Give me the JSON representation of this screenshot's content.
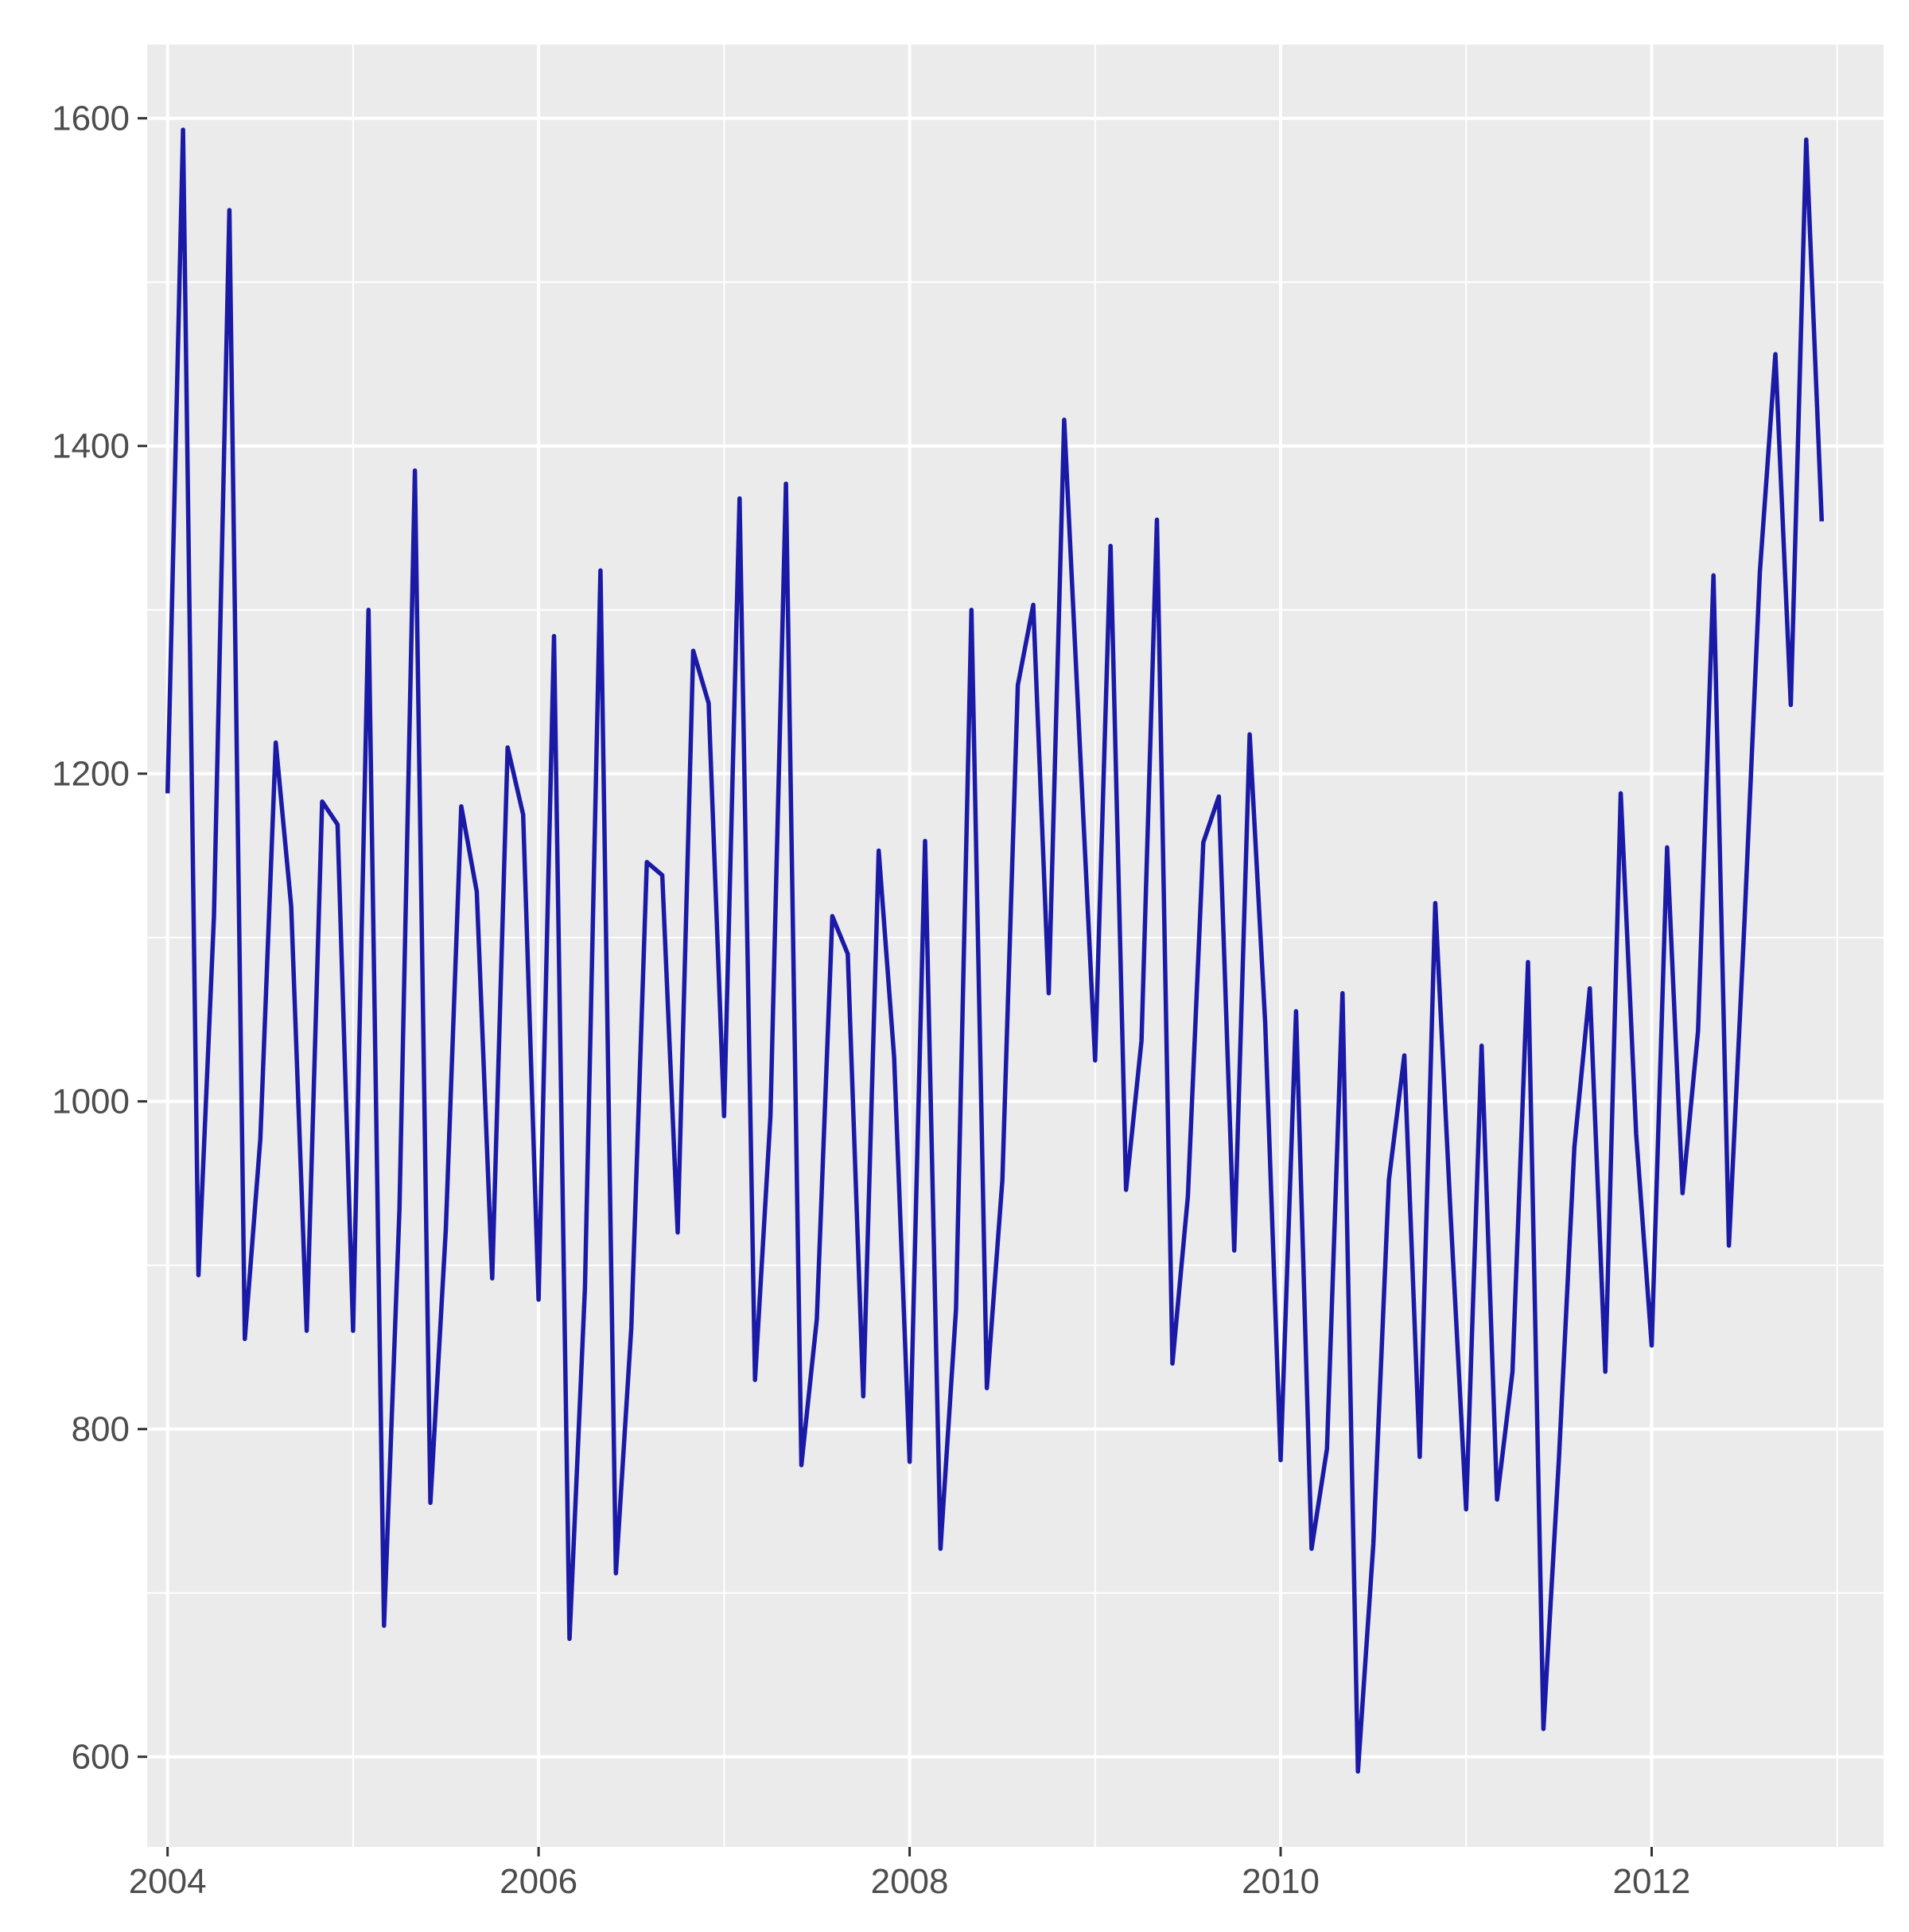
{
  "chart_data": {
    "type": "line",
    "title": "",
    "xlabel": "",
    "ylabel": "",
    "xlim": [
      2003.89,
      2013.25
    ],
    "ylim": [
      545,
      1645
    ],
    "x_ticks": [
      2004,
      2006,
      2008,
      2010,
      2012
    ],
    "x_tick_labels": [
      "2004",
      "2006",
      "2008",
      "2010",
      "2012"
    ],
    "y_ticks": [
      600,
      800,
      1000,
      1200,
      1400,
      1600
    ],
    "y_tick_labels": [
      "600",
      "800",
      "1000",
      "1200",
      "1400",
      "1600"
    ],
    "grid": true,
    "legend": "none",
    "colors": {
      "line": "#1a1aa6",
      "panel": "#ebebeb",
      "grid": "#ffffff",
      "text": "#4d4d4d"
    },
    "series": [
      {
        "x_start": "2004-01",
        "x_step": "1 month",
        "values": [
          1188,
          1593,
          894,
          1113,
          1544,
          855,
          977,
          1219,
          1119,
          860,
          1183,
          1169,
          860,
          1300,
          680,
          934,
          1385,
          755,
          922,
          1180,
          1128,
          892,
          1216,
          1175,
          879,
          1284,
          672,
          886,
          1324,
          712,
          862,
          1146,
          1138,
          920,
          1275,
          1243,
          991,
          1368,
          830,
          991,
          1377,
          778,
          867,
          1113,
          1090,
          820,
          1153,
          1027,
          780,
          1159,
          727,
          873,
          1300,
          825,
          952,
          1254,
          1303,
          1066,
          1416,
          1219,
          1025,
          1339,
          946,
          1037,
          1355,
          840,
          942,
          1158,
          1186,
          909,
          1224,
          1048,
          781,
          1055,
          727,
          788,
          1066,
          591,
          730,
          952,
          1028,
          783,
          1121,
          930,
          751,
          1034,
          757,
          835,
          1085,
          617,
          782,
          972,
          1069,
          835,
          1188,
          980,
          851,
          1155,
          944,
          1043,
          1321,
          912,
          1109,
          1323,
          1456,
          1242,
          1587,
          1354
        ]
      }
    ]
  }
}
